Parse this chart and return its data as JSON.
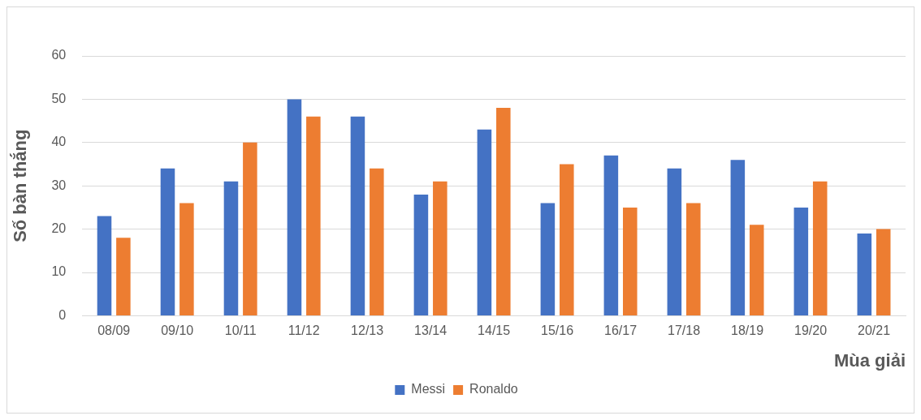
{
  "chart_data": {
    "type": "bar",
    "xlabel": "Mùa giải",
    "ylabel": "Số bàn thắng",
    "categories": [
      "08/09",
      "09/10",
      "10/11",
      "11/12",
      "12/13",
      "13/14",
      "14/15",
      "15/16",
      "16/17",
      "17/18",
      "18/19",
      "19/20",
      "20/21"
    ],
    "series": [
      {
        "name": "Messi",
        "color": "#4472c4",
        "values": [
          23,
          34,
          31,
          50,
          46,
          28,
          43,
          26,
          37,
          34,
          36,
          25,
          19
        ]
      },
      {
        "name": "Ronaldo",
        "color": "#ed7d31",
        "values": [
          18,
          26,
          40,
          46,
          34,
          31,
          48,
          35,
          25,
          26,
          21,
          31,
          20
        ]
      }
    ],
    "ylim": [
      0,
      60
    ],
    "yticks": [
      0,
      10,
      20,
      30,
      40,
      50,
      60
    ],
    "grid": "y",
    "legend": "bottom"
  }
}
